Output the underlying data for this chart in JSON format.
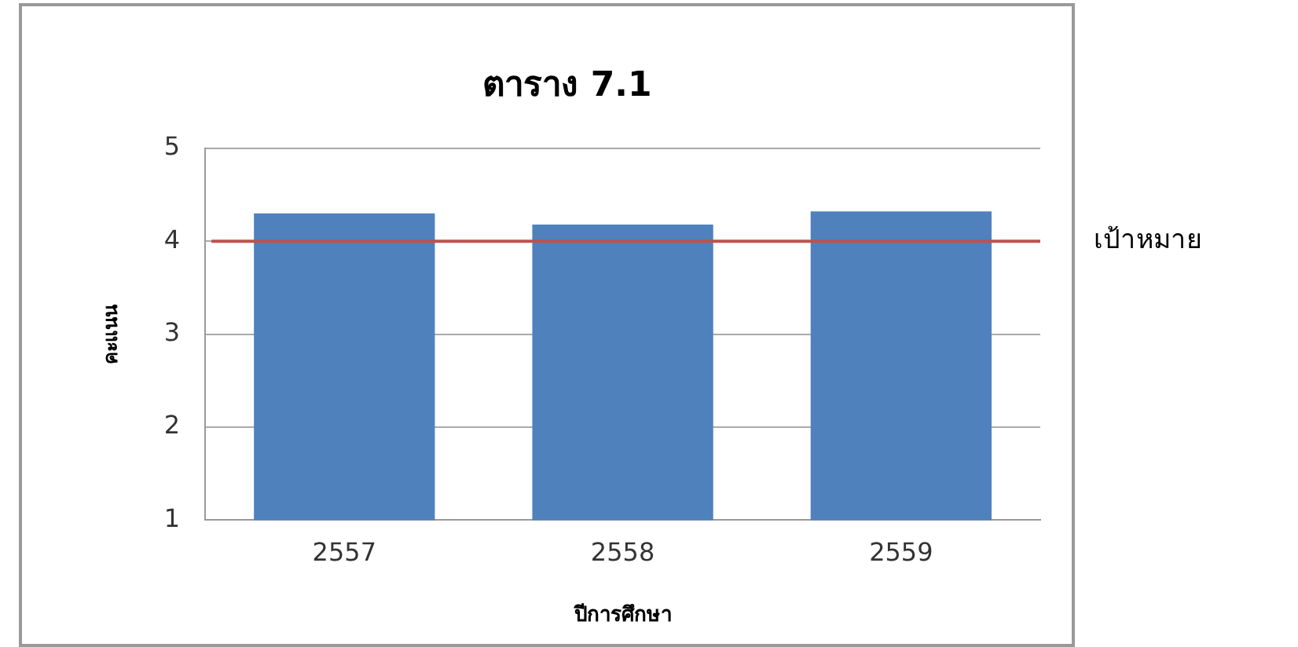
{
  "chart_data": {
    "type": "bar",
    "title": "ตาราง 7.1",
    "xlabel": "ปีการศึกษา",
    "ylabel": "คะแนน",
    "categories": [
      "2557",
      "2558",
      "2559"
    ],
    "values": [
      4.3,
      4.18,
      4.32
    ],
    "color": "#4f81bd",
    "ylim": [
      1,
      5
    ],
    "yticks": [
      1,
      2,
      3,
      4,
      5
    ],
    "grid": "y",
    "legend": false,
    "ref_lines": [
      {
        "axis": "y",
        "value": 4,
        "label": "เป้าหมาย",
        "color": "#c0504d"
      }
    ]
  }
}
